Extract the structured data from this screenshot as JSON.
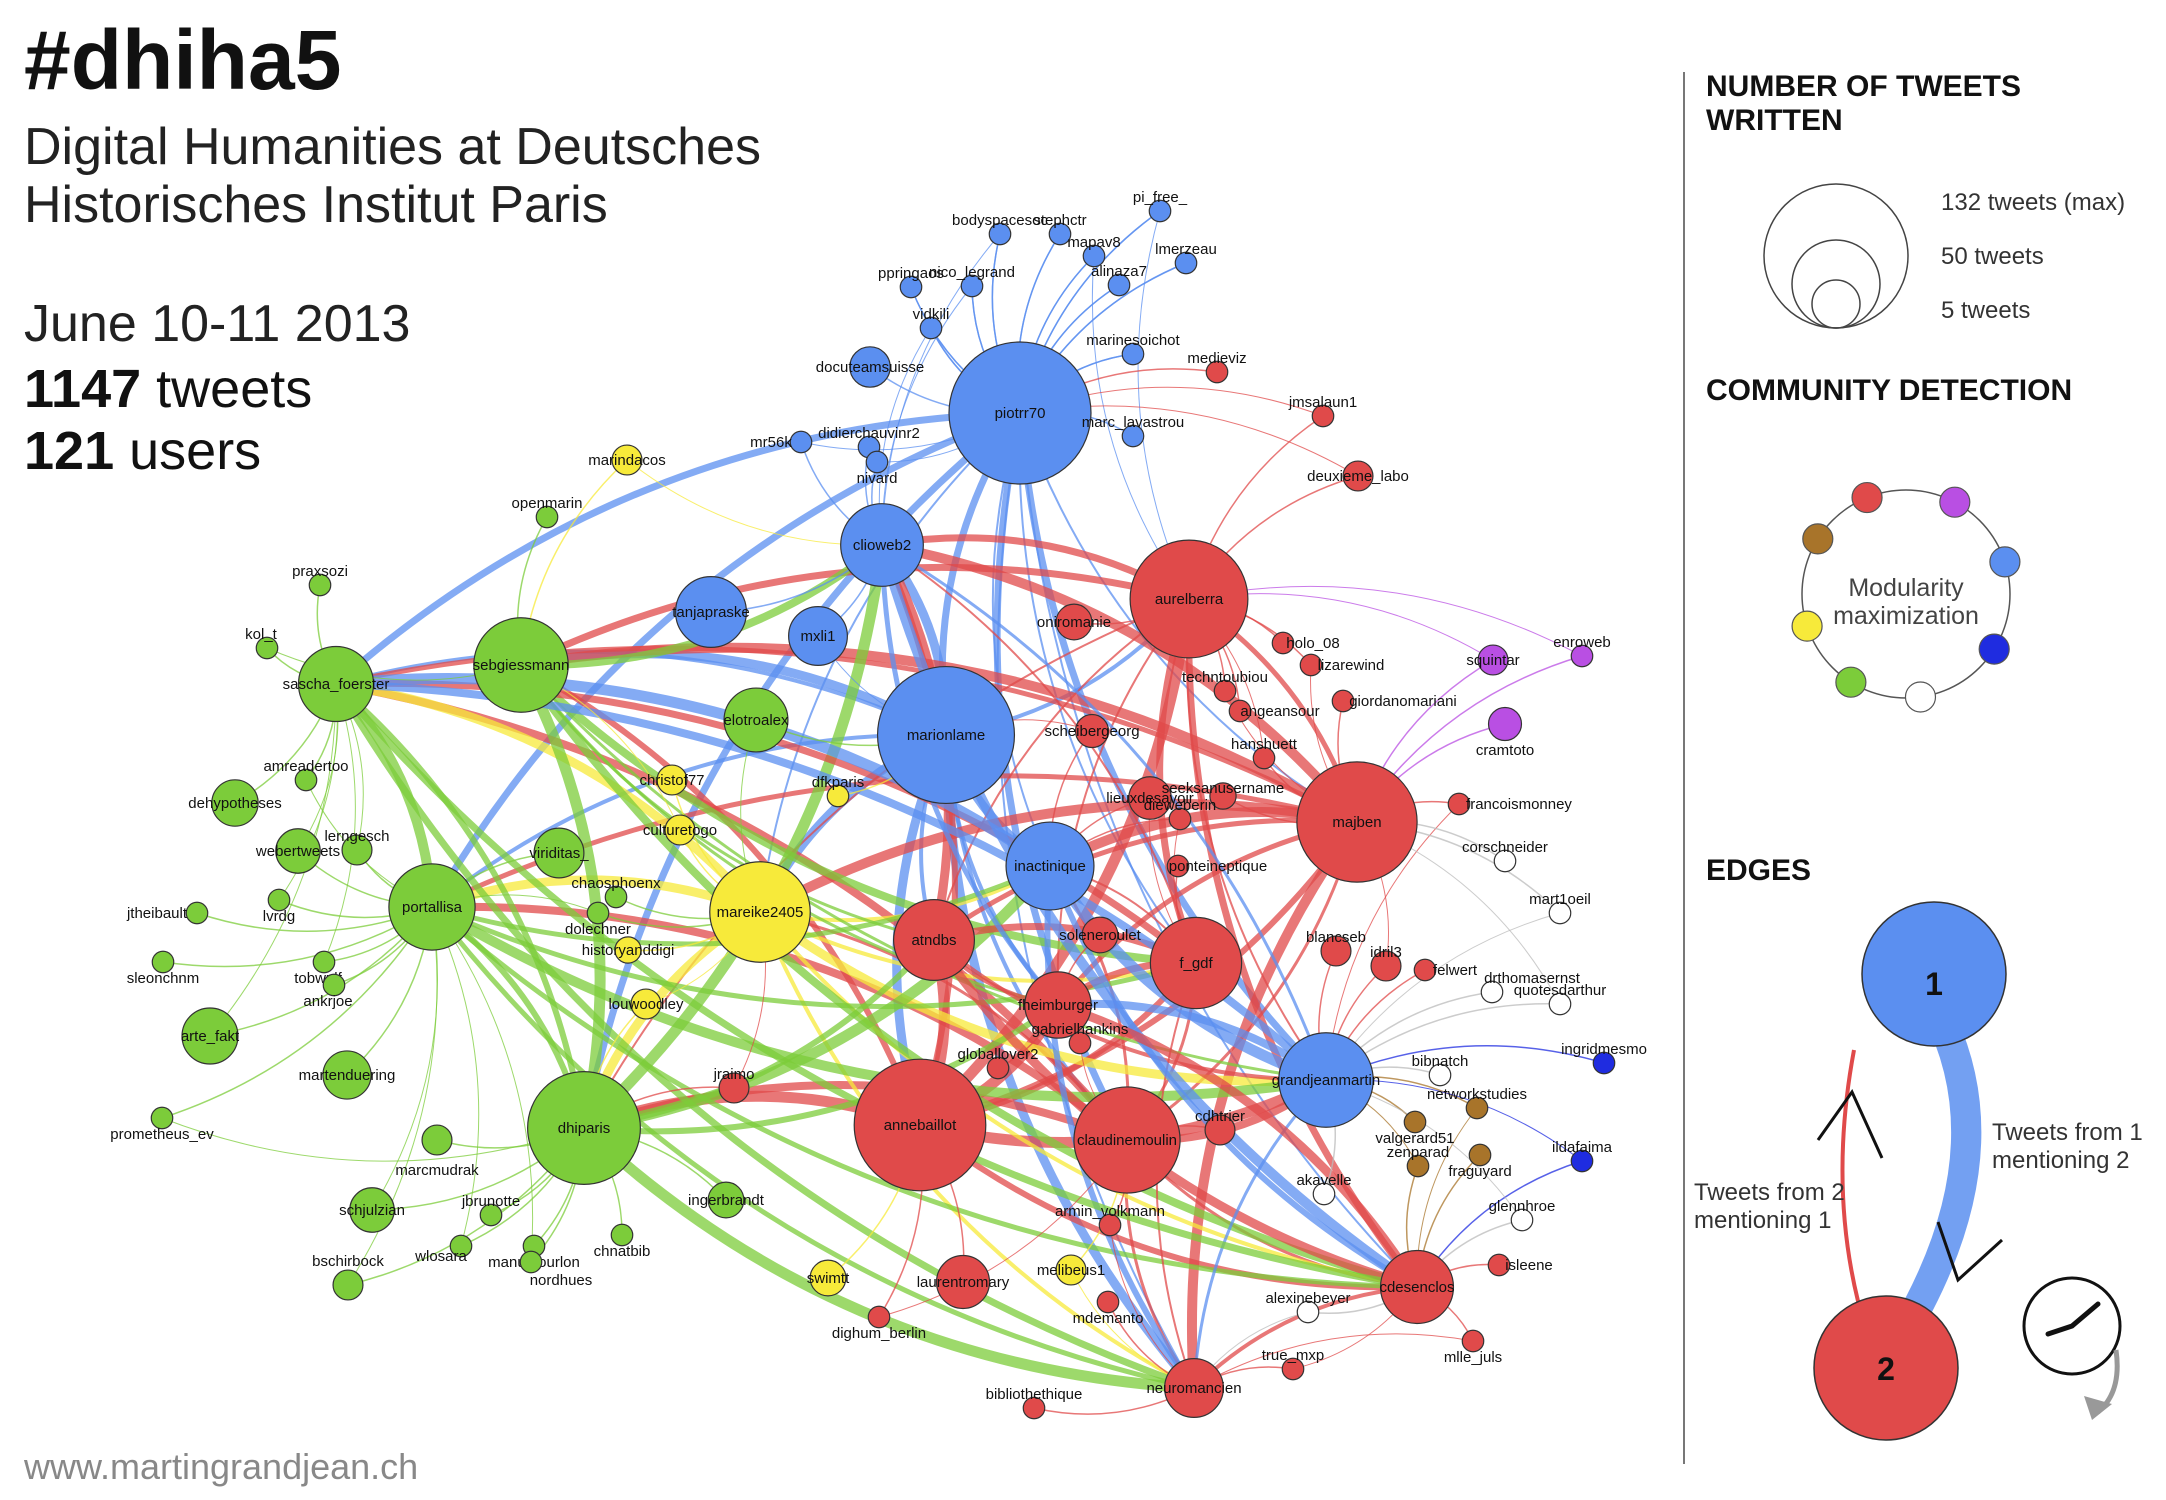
{
  "header": {
    "title": "#dhiha5",
    "subtitle": "Digital Humanities at Deutsches Historisches Institut Paris",
    "dates": "June 10-11 2013",
    "tweets_count": "1147",
    "tweets_label": "tweets",
    "users_count": "121",
    "users_label": "users"
  },
  "credit": "www.martingrandjean.ch",
  "colors": {
    "blue": "#5b8ff0",
    "red": "#e04a4a",
    "green": "#7ccc3a",
    "yellow": "#f7ea3a",
    "purple": "#b94fe3",
    "brown": "#a8742a",
    "navy": "#1f2ce0",
    "white": "#ffffff"
  },
  "graph": {
    "nodes": [
      {
        "id": "piotrr70",
        "group": "blue",
        "tweets": 132
      },
      {
        "id": "marionlame",
        "group": "blue",
        "tweets": 122
      },
      {
        "id": "clioweb2",
        "group": "blue",
        "tweets": 40
      },
      {
        "id": "tanjapraske",
        "group": "blue",
        "tweets": 28
      },
      {
        "id": "mxli1",
        "group": "blue",
        "tweets": 18
      },
      {
        "id": "docuteamsuisse",
        "group": "blue",
        "tweets": 7
      },
      {
        "id": "inactinique",
        "group": "blue",
        "tweets": 46
      },
      {
        "id": "grandjeanmartin",
        "group": "blue",
        "tweets": 54
      },
      {
        "id": "bodyspacesoc",
        "group": "blue",
        "tweets": 1
      },
      {
        "id": "stephctr",
        "group": "blue",
        "tweets": 1
      },
      {
        "id": "pi_free_",
        "group": "blue",
        "tweets": 1
      },
      {
        "id": "ppringaos",
        "group": "blue",
        "tweets": 1
      },
      {
        "id": "mapav8",
        "group": "blue",
        "tweets": 1
      },
      {
        "id": "lmerzeau",
        "group": "blue",
        "tweets": 1
      },
      {
        "id": "nico_legrand",
        "group": "blue",
        "tweets": 1
      },
      {
        "id": "alinaza7",
        "group": "blue",
        "tweets": 1
      },
      {
        "id": "vidkili",
        "group": "blue",
        "tweets": 1
      },
      {
        "id": "marinesoichot",
        "group": "blue",
        "tweets": 1
      },
      {
        "id": "mr56k",
        "group": "blue",
        "tweets": 1
      },
      {
        "id": "didierchauvinr2",
        "group": "blue",
        "tweets": 1
      },
      {
        "id": "nivard",
        "group": "blue",
        "tweets": 1
      },
      {
        "id": "marc_lavastrou",
        "group": "blue",
        "tweets": 1
      },
      {
        "id": "aurelberra",
        "group": "red",
        "tweets": 88
      },
      {
        "id": "majben",
        "group": "red",
        "tweets": 92
      },
      {
        "id": "annebaillot",
        "group": "red",
        "tweets": 112
      },
      {
        "id": "claudinemoulin",
        "group": "red",
        "tweets": 70
      },
      {
        "id": "f_gdf",
        "group": "red",
        "tweets": 50
      },
      {
        "id": "atndbs",
        "group": "red",
        "tweets": 38
      },
      {
        "id": "fheimburger",
        "group": "red",
        "tweets": 24
      },
      {
        "id": "neuromancien",
        "group": "red",
        "tweets": 18
      },
      {
        "id": "cdesenclos",
        "group": "red",
        "tweets": 30
      },
      {
        "id": "laurentromary",
        "group": "red",
        "tweets": 14
      },
      {
        "id": "lieuxdesavoir",
        "group": "red",
        "tweets": 8
      },
      {
        "id": "oniromanie",
        "group": "red",
        "tweets": 5
      },
      {
        "id": "scheibergeorg",
        "group": "red",
        "tweets": 4
      },
      {
        "id": "soleneroulet",
        "group": "red",
        "tweets": 5
      },
      {
        "id": "deuxieme_labo",
        "group": "red",
        "tweets": 3
      },
      {
        "id": "blancseb",
        "group": "red",
        "tweets": 3
      },
      {
        "id": "idril3",
        "group": "red",
        "tweets": 3
      },
      {
        "id": "cdhtrier",
        "group": "red",
        "tweets": 3
      },
      {
        "id": "jraimo",
        "group": "red",
        "tweets": 3
      },
      {
        "id": "seeksanusername",
        "group": "red",
        "tweets": 2
      },
      {
        "id": "hanshuett",
        "group": "red",
        "tweets": 1
      },
      {
        "id": "medieviz",
        "group": "red",
        "tweets": 1
      },
      {
        "id": "jmsalaun1",
        "group": "red",
        "tweets": 1
      },
      {
        "id": "holo_08",
        "group": "red",
        "tweets": 1
      },
      {
        "id": "lizarewind",
        "group": "red",
        "tweets": 1
      },
      {
        "id": "giordanomariani",
        "group": "red",
        "tweets": 1
      },
      {
        "id": "techntoubiou",
        "group": "red",
        "tweets": 1
      },
      {
        "id": "angeansour",
        "group": "red",
        "tweets": 1
      },
      {
        "id": "dieweberin",
        "group": "red",
        "tweets": 1
      },
      {
        "id": "ponteineptique",
        "group": "red",
        "tweets": 1
      },
      {
        "id": "francoismonney",
        "group": "red",
        "tweets": 1
      },
      {
        "id": "felwert",
        "group": "red",
        "tweets": 1
      },
      {
        "id": "gabrielhankins",
        "group": "red",
        "tweets": 1
      },
      {
        "id": "globallover2",
        "group": "red",
        "tweets": 1
      },
      {
        "id": "armin_volkmann",
        "group": "red",
        "tweets": 1
      },
      {
        "id": "mdemanto",
        "group": "red",
        "tweets": 1
      },
      {
        "id": "dighum_berlin",
        "group": "red",
        "tweets": 1
      },
      {
        "id": "bibliothethique",
        "group": "red",
        "tweets": 1
      },
      {
        "id": "true_mxp",
        "group": "red",
        "tweets": 1
      },
      {
        "id": "isleene",
        "group": "red",
        "tweets": 1
      },
      {
        "id": "mlle_juls",
        "group": "red",
        "tweets": 1
      },
      {
        "id": "mareike2405",
        "group": "yellow",
        "tweets": 62
      },
      {
        "id": "marindacos",
        "group": "yellow",
        "tweets": 3
      },
      {
        "id": "christof77",
        "group": "yellow",
        "tweets": 3
      },
      {
        "id": "culturetogo",
        "group": "yellow",
        "tweets": 3
      },
      {
        "id": "historyanddigi",
        "group": "yellow",
        "tweets": 2
      },
      {
        "id": "louwoodley",
        "group": "yellow",
        "tweets": 3
      },
      {
        "id": "swimtt",
        "group": "yellow",
        "tweets": 5
      },
      {
        "id": "melibeus1",
        "group": "yellow",
        "tweets": 3
      },
      {
        "id": "dfkparis",
        "group": "yellow",
        "tweets": 1
      },
      {
        "id": "dhiparis",
        "group": "green",
        "tweets": 80
      },
      {
        "id": "sebgiessmann",
        "group": "green",
        "tweets": 54
      },
      {
        "id": "portallisa",
        "group": "green",
        "tweets": 44
      },
      {
        "id": "sascha_foerster",
        "group": "green",
        "tweets": 32
      },
      {
        "id": "elotroalex",
        "group": "green",
        "tweets": 22
      },
      {
        "id": "viriditas_",
        "group": "green",
        "tweets": 12
      },
      {
        "id": "arte_fakt",
        "group": "green",
        "tweets": 16
      },
      {
        "id": "dehypotheses",
        "group": "green",
        "tweets": 10
      },
      {
        "id": "webertweets",
        "group": "green",
        "tweets": 9
      },
      {
        "id": "martenduering",
        "group": "green",
        "tweets": 11
      },
      {
        "id": "schjulzian",
        "group": "green",
        "tweets": 9
      },
      {
        "id": "ingerbrandt",
        "group": "green",
        "tweets": 5
      },
      {
        "id": "lerngesch",
        "group": "green",
        "tweets": 3
      },
      {
        "id": "marcmudrak",
        "group": "green",
        "tweets": 3
      },
      {
        "id": "bschirbock",
        "group": "green",
        "tweets": 3
      },
      {
        "id": "praxsozi",
        "group": "green",
        "tweets": 1
      },
      {
        "id": "kol_t",
        "group": "green",
        "tweets": 1
      },
      {
        "id": "openmarin",
        "group": "green",
        "tweets": 1
      },
      {
        "id": "amreadertoo",
        "group": "green",
        "tweets": 1
      },
      {
        "id": "jtheibault",
        "group": "green",
        "tweets": 1
      },
      {
        "id": "lvrdg",
        "group": "green",
        "tweets": 1
      },
      {
        "id": "sleonchnm",
        "group": "green",
        "tweets": 1
      },
      {
        "id": "tobwulf",
        "group": "green",
        "tweets": 1
      },
      {
        "id": "ankrjoe",
        "group": "green",
        "tweets": 1
      },
      {
        "id": "prometheus_ev",
        "group": "green",
        "tweets": 1
      },
      {
        "id": "chaosphoenx",
        "group": "green",
        "tweets": 1
      },
      {
        "id": "dolechner",
        "group": "green",
        "tweets": 1
      },
      {
        "id": "jbrunotte",
        "group": "green",
        "tweets": 1
      },
      {
        "id": "wlosara",
        "group": "green",
        "tweets": 1
      },
      {
        "id": "manumourlon",
        "group": "green",
        "tweets": 1
      },
      {
        "id": "nordhues",
        "group": "green",
        "tweets": 1
      },
      {
        "id": "chnatbib",
        "group": "green",
        "tweets": 1
      },
      {
        "id": "squintar",
        "group": "purple",
        "tweets": 3
      },
      {
        "id": "cramtoto",
        "group": "purple",
        "tweets": 4
      },
      {
        "id": "enroweb",
        "group": "purple",
        "tweets": 1
      },
      {
        "id": "valgerard51",
        "group": "brown",
        "tweets": 1
      },
      {
        "id": "networkstudies",
        "group": "brown",
        "tweets": 1
      },
      {
        "id": "fraguyard",
        "group": "brown",
        "tweets": 1
      },
      {
        "id": "zenparad",
        "group": "brown",
        "tweets": 1
      },
      {
        "id": "ingridmesmo",
        "group": "navy",
        "tweets": 1
      },
      {
        "id": "ildafaima",
        "group": "navy",
        "tweets": 1
      },
      {
        "id": "corschneider",
        "group": "white",
        "tweets": 1
      },
      {
        "id": "mart1oeil",
        "group": "white",
        "tweets": 1
      },
      {
        "id": "drthomasernst",
        "group": "white",
        "tweets": 1
      },
      {
        "id": "quotesdarthur",
        "group": "white",
        "tweets": 1
      },
      {
        "id": "bibnatch",
        "group": "white",
        "tweets": 1
      },
      {
        "id": "glennhroe",
        "group": "white",
        "tweets": 1
      },
      {
        "id": "akavelle",
        "group": "white",
        "tweets": 1
      },
      {
        "id": "alexinebeyer",
        "group": "white",
        "tweets": 1
      }
    ]
  },
  "legend": {
    "size_heading": "NUMBER OF TWEETS WRITTEN",
    "size_max": "132 tweets (max)",
    "size_mid": "50 tweets",
    "size_min": "5 tweets",
    "community_heading": "COMMUNITY DETECTION",
    "community_label": "Modularity maximization",
    "community_colors": [
      "red",
      "purple",
      "blue",
      "navy",
      "white",
      "green",
      "yellow",
      "brown"
    ],
    "edges_heading": "EDGES",
    "edge_node_1": "1",
    "edge_node_2": "2",
    "edge_from_1": "Tweets from 1 mentioning 2",
    "edge_from_2": "Tweets from 2 mentioning 1"
  }
}
